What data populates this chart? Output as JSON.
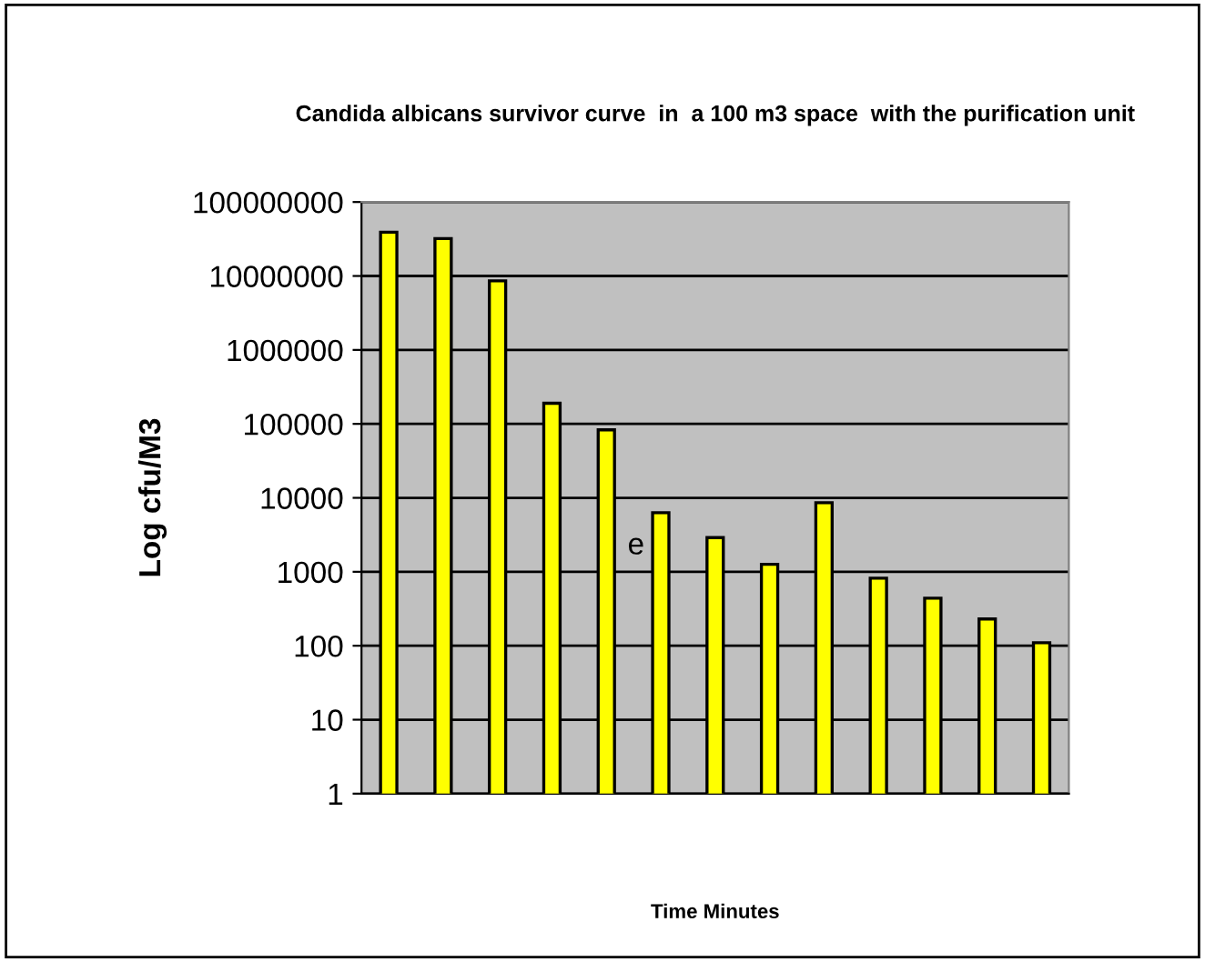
{
  "chart_data": {
    "type": "bar",
    "title": "Candida albicans survivor curve  in  a 100 m3 space  with the purification unit",
    "xlabel": "Time Minutes",
    "ylabel": "Log cfu/M3",
    "categories": [
      null,
      null,
      null,
      null,
      null,
      null,
      null,
      null,
      null,
      null,
      null,
      null,
      null
    ],
    "values": [
      39000000,
      32000000,
      8600000,
      190000,
      83000,
      6300,
      2900,
      1260,
      8600,
      820,
      440,
      230,
      110
    ],
    "color": "#ffff00",
    "log": true,
    "ylim": [
      1,
      100000000
    ],
    "yticks": [
      1,
      10,
      100,
      1000,
      10000,
      100000,
      1000000,
      10000000,
      100000000
    ],
    "grid": "y",
    "legend": false,
    "annotations": [
      "e"
    ]
  }
}
